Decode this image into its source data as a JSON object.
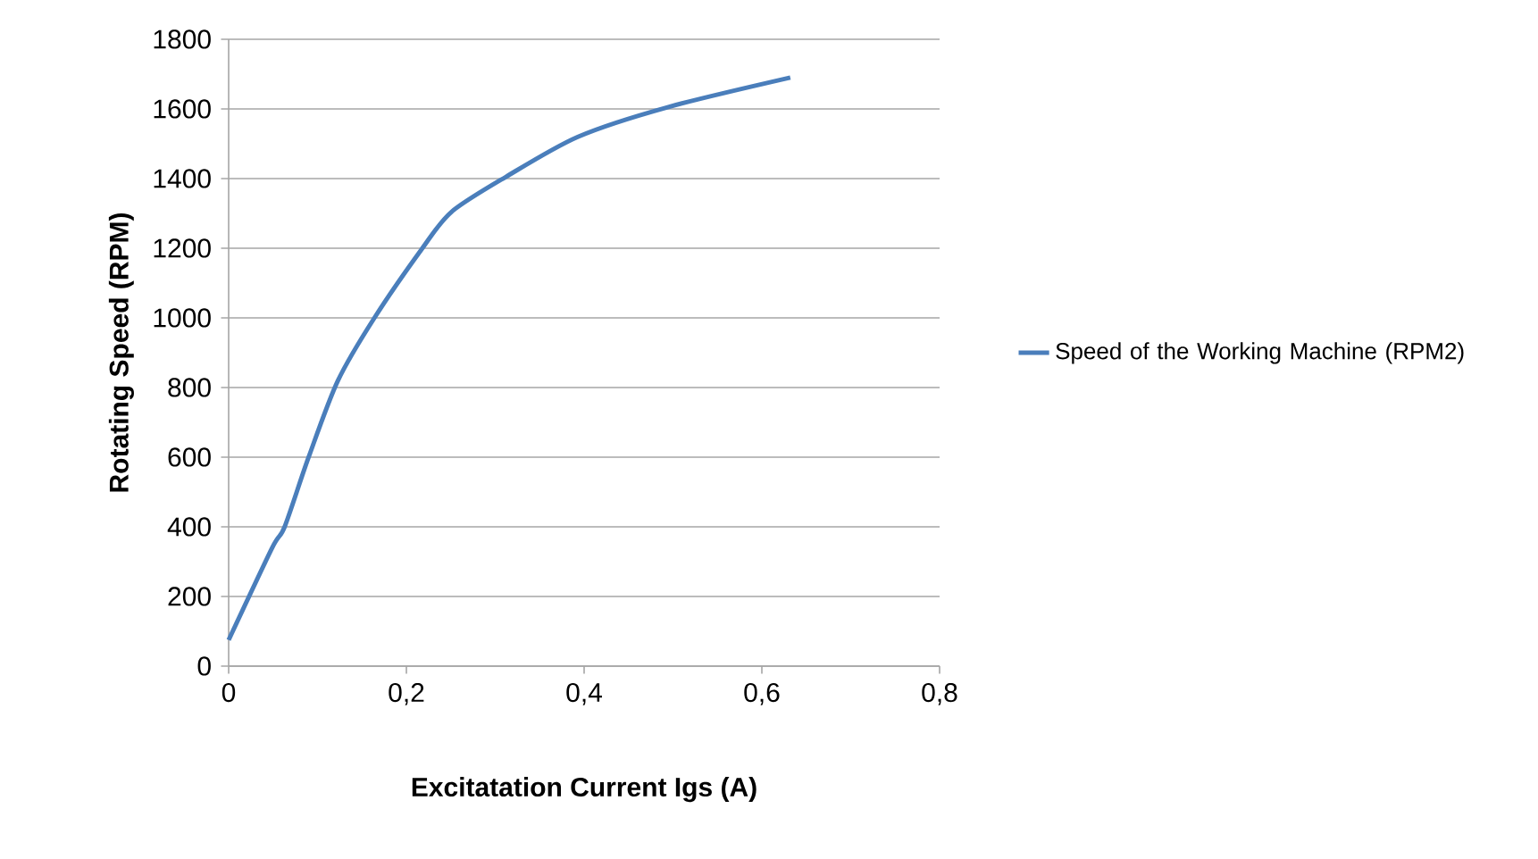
{
  "chart_data": {
    "type": "line",
    "xlabel": "Excitatation Current Igs (A)",
    "ylabel": "Rotating Speed (RPM)",
    "x": [
      0,
      0.049,
      0.063,
      0.09,
      0.123,
      0.164,
      0.218,
      0.251,
      0.312,
      0.393,
      0.494,
      0.632
    ],
    "series": [
      {
        "name": "Speed of the Working Machine (RPM2)",
        "color": "#4a7ebb",
        "values": [
          75,
          340,
          400,
          600,
          820,
          1000,
          1200,
          1305,
          1405,
          1520,
          1605,
          1690
        ]
      }
    ],
    "xlim": [
      0,
      0.8
    ],
    "xticks": [
      {
        "value": 0,
        "label": "0"
      },
      {
        "value": 0.2,
        "label": "0,2"
      },
      {
        "value": 0.4,
        "label": "0,4"
      },
      {
        "value": 0.6,
        "label": "0,6"
      },
      {
        "value": 0.8,
        "label": "0,8"
      }
    ],
    "ylim": [
      0,
      1800
    ],
    "yticks": [
      0,
      200,
      400,
      600,
      800,
      1000,
      1200,
      1400,
      1600,
      1800
    ],
    "grid": "y",
    "legend": "right",
    "marker": "none",
    "line_style": "solid"
  }
}
